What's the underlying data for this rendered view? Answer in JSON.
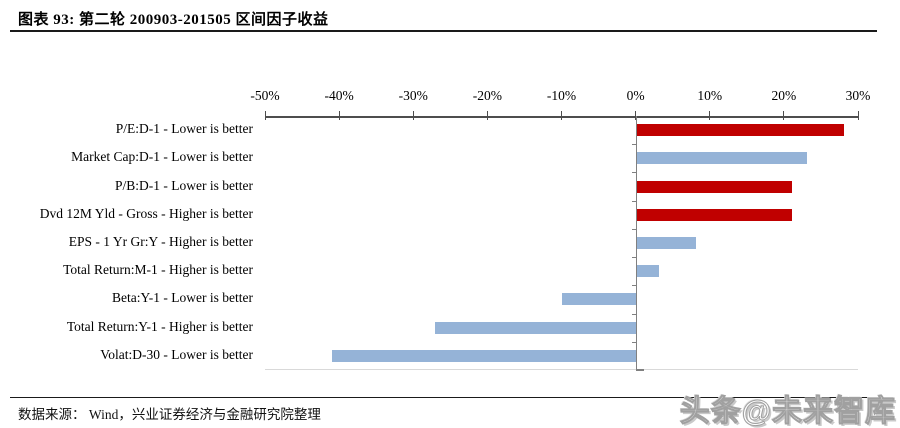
{
  "title": "图表 93:  第二轮 200903-201505 区间因子收益",
  "source": "数据来源：  Wind，兴业证券经济与金融研究院整理",
  "watermark": "头条@未来智库",
  "colors": {
    "bar_red": "#C00000",
    "bar_blue": "#95B3D7",
    "top_axis": "#4d4d4d",
    "zero_axis": "#808080",
    "baseline": "#d9d9d9",
    "title_rule": "#1a1a1a"
  },
  "chart_data": {
    "type": "bar",
    "orientation": "horizontal",
    "title": "第二轮 200903-201505 区间因子收益",
    "xlabel": "",
    "ylabel": "",
    "xlim": [
      -50,
      30
    ],
    "x_ticks": [
      -50,
      -40,
      -30,
      -20,
      -10,
      0,
      10,
      20,
      30
    ],
    "x_tick_labels": [
      "-50%",
      "-40%",
      "-30%",
      "-20%",
      "-10%",
      "0%",
      "10%",
      "20%",
      "30%"
    ],
    "axis_position": "top",
    "grid": false,
    "legend": "none",
    "unit": "%",
    "categories": [
      "P/E:D-1 - Lower is better",
      "Market Cap:D-1 - Lower is better",
      "P/B:D-1 - Lower is better",
      "Dvd 12M Yld - Gross - Higher is better",
      "EPS - 1 Yr Gr:Y - Higher is better",
      "Total Return:M-1 - Higher is better",
      "Beta:Y-1 - Lower is better",
      "Total Return:Y-1 - Higher is better",
      "Volat:D-30 - Lower is better"
    ],
    "values": [
      28,
      23,
      21,
      21,
      8,
      3,
      -10,
      -27,
      -41
    ],
    "bar_colors": [
      "red",
      "blue",
      "red",
      "red",
      "blue",
      "blue",
      "blue",
      "blue",
      "blue"
    ]
  }
}
